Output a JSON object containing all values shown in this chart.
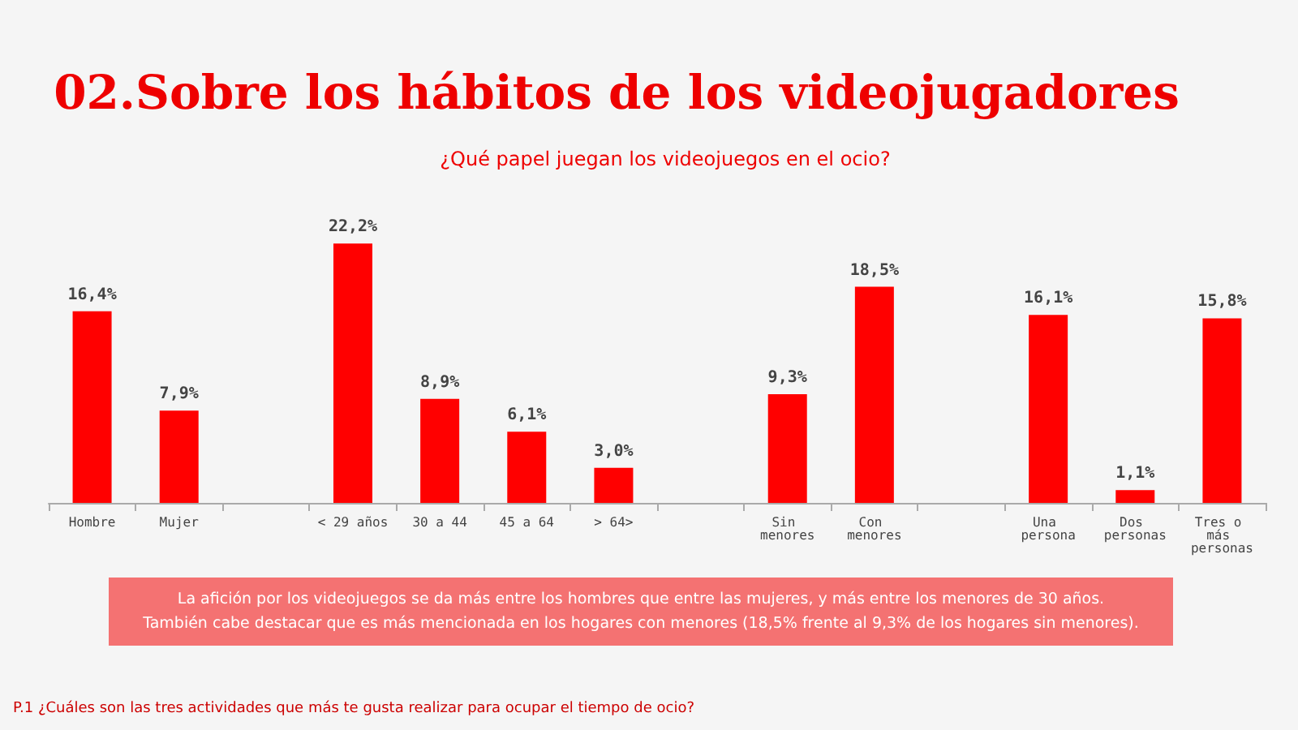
{
  "chart_data": {
    "type": "bar",
    "title": "02.Sobre los hábitos de los videojugadores",
    "subtitle": "¿Qué papel juegan los videojuegos en el ocio?",
    "categories": [
      "Hombre",
      "Mujer",
      null,
      "< 29 años",
      "30 a 44",
      "45 a 64",
      "> 64>",
      null,
      "Sin menores",
      "Con menores",
      null,
      "Una persona",
      "Dos personas",
      "Tres o más personas"
    ],
    "values": [
      16.4,
      7.9,
      null,
      22.2,
      8.9,
      6.1,
      3.0,
      null,
      9.3,
      18.5,
      null,
      16.1,
      1.1,
      15.8
    ],
    "value_labels": [
      "16,4%",
      "7,9%",
      null,
      "22,2%",
      "8,9%",
      "6,1%",
      "3,0%",
      null,
      "9,3%",
      "18,5%",
      null,
      "16,1%",
      "1,1%",
      "15,8%"
    ],
    "color": "#ff0000",
    "tick_labels": "x",
    "annotations": [
      "La afición por los videojuegos se da más entre los hombres que entre las mujeres, y más entre los menores de 30 años.\nTambién cabe destacar que es más mencionada en los hogares con menores (18,5% frente al 9,3% de los hogares sin menores).",
      "P.1 ¿Cuáles son las tres actividades que más te gusta realizar para ocupar el tiempo de ocio?"
    ]
  }
}
